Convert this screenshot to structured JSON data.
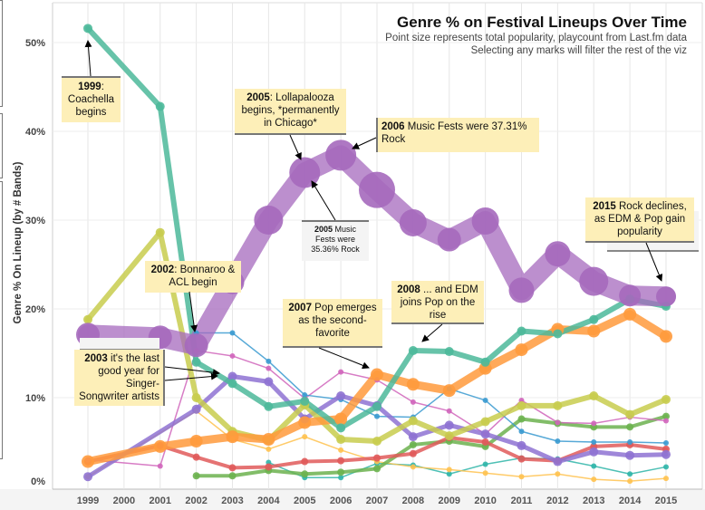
{
  "title": "Genre % on Festival Lineups Over Time",
  "subtitle_1": "Point size represents total popularity, playcount from Last.fm data",
  "subtitle_2": "Selecting any marks will filter the rest of the viz",
  "chart_data": {
    "type": "line",
    "ylabel": "Genre % On Lineup (by # Bands)",
    "xlabel": "",
    "x": [
      1999,
      2000,
      2001,
      2002,
      2003,
      2004,
      2005,
      2006,
      2007,
      2008,
      2009,
      2010,
      2011,
      2012,
      2013,
      2014,
      2015
    ],
    "x_tick_labels": [
      "1999",
      "2000",
      "2001",
      "2002",
      "2003",
      "2004",
      "2005",
      "2006",
      "2007",
      "2008",
      "2009",
      "2010",
      "2011",
      "2012",
      "2013",
      "2014",
      "2015"
    ],
    "y_ticks": [
      0,
      10,
      20,
      30,
      40,
      50
    ],
    "y_tick_labels": [
      "0%",
      "10%",
      "20%",
      "30%",
      "40%",
      "50%"
    ],
    "ylim": [
      0,
      54
    ],
    "grid": true,
    "series": [
      {
        "color": "#a569bd",
        "values": [
          17.1,
          null,
          16.8,
          15.9,
          23.0,
          30.0,
          35.36,
          37.31,
          33.4,
          29.7,
          27.8,
          29.9,
          22.1,
          26.2,
          23.1,
          21.5,
          21.4
        ]
      },
      {
        "color": "#4cb99a",
        "values": [
          51.6,
          null,
          42.8,
          14.0,
          11.6,
          9.0,
          9.6,
          6.6,
          9.0,
          15.3,
          15.2,
          14.0,
          17.5,
          17.2,
          18.8,
          21.1,
          20.3
        ]
      },
      {
        "color": "#ff9a3c",
        "values": [
          2.8,
          null,
          4.5,
          5.1,
          5.6,
          5.3,
          7.2,
          7.6,
          12.6,
          11.5,
          10.8,
          13.3,
          15.4,
          17.7,
          17.5,
          19.4,
          16.9
        ]
      },
      {
        "color": "#c8cc4e",
        "values": [
          18.8,
          null,
          28.6,
          10.0,
          6.2,
          5.2,
          9.2,
          5.3,
          5.1,
          7.4,
          5.7,
          7.3,
          9.1,
          9.1,
          10.2,
          8.1,
          9.8
        ]
      },
      {
        "color": "#8e72d2",
        "values": [
          1.1,
          null,
          null,
          8.7,
          12.4,
          11.8,
          7.6,
          10.2,
          9.1,
          5.6,
          6.9,
          5.9,
          4.6,
          2.8,
          3.9,
          3.5,
          3.6
        ]
      },
      {
        "color": "#3a9ad0",
        "values": [
          null,
          null,
          null,
          17.3,
          17.3,
          14.1,
          10.3,
          9.8,
          7.9,
          7.8,
          11.0,
          9.7,
          6.2,
          5.1,
          5.0,
          5.0,
          4.9
        ]
      },
      {
        "color": "#d065bb",
        "values": [
          3.0,
          null,
          2.3,
          15.3,
          14.7,
          13.3,
          9.9,
          12.9,
          12.0,
          9.5,
          8.5,
          5.9,
          9.7,
          7.2,
          7.1,
          7.8,
          7.4
        ]
      },
      {
        "color": "#e05a5a",
        "values": [
          2.8,
          null,
          4.6,
          3.3,
          2.1,
          2.2,
          2.8,
          2.9,
          3.2,
          3.7,
          5.5,
          5.0,
          3.1,
          2.9,
          4.5,
          4.7,
          4.2
        ]
      },
      {
        "color": "#6cb24f",
        "values": [
          null,
          null,
          null,
          1.2,
          1.2,
          1.8,
          1.4,
          1.6,
          2.0,
          4.7,
          5.1,
          4.5,
          7.6,
          7.1,
          6.7,
          6.7,
          7.9
        ]
      },
      {
        "color": "#ffc24f",
        "values": [
          1.1,
          null,
          null,
          8.5,
          5.3,
          4.2,
          5.6,
          4.1,
          2.8,
          2.2,
          1.9,
          1.5,
          1.1,
          1.4,
          0.8,
          0.6,
          0.9
        ]
      },
      {
        "color": "#2fb5a8",
        "values": [
          null,
          null,
          null,
          null,
          null,
          2.7,
          1.0,
          1.0,
          2.6,
          2.4,
          1.4,
          2.5,
          3.2,
          3.1,
          2.3,
          1.4,
          2.2
        ]
      }
    ],
    "annotations": [
      {
        "bold": "1999",
        "text": ": Coachella begins"
      },
      {
        "bold": "2005",
        "text": ": Lollapalooza begins, *permanently in Chicago*"
      },
      {
        "bold": "2006",
        "text": " Music Fests were 37.31% Rock"
      },
      {
        "bold": "2005",
        "text": " Music Fests were 35.36% Rock"
      },
      {
        "bold": "2002",
        "text": ": Bonnaroo & ACL begin"
      },
      {
        "bold": "2007",
        "text": " Pop emerges as the second-favorite"
      },
      {
        "bold": "2008",
        "text": " ... and EDM joins Pop on the rise"
      },
      {
        "bold": "2003",
        "text": " it's the last good year for Singer-Songwriter artists"
      },
      {
        "bold": "2015",
        "text": " Rock declines, as EDM & Pop gain popularity"
      }
    ]
  }
}
